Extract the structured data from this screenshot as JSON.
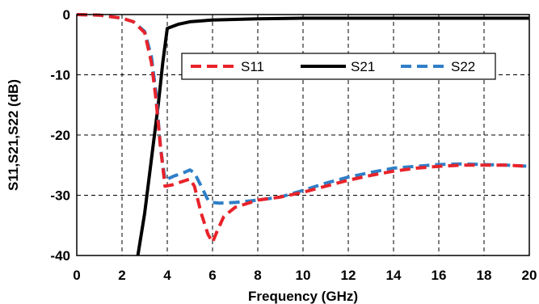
{
  "chart_data": {
    "type": "line",
    "xlabel": "Frequency (GHz)",
    "ylabel": "S11,S21,S22 (dB)",
    "xlim": [
      0,
      20
    ],
    "ylim": [
      -40,
      0
    ],
    "x_ticks": [
      0,
      2,
      4,
      6,
      8,
      10,
      12,
      14,
      16,
      18,
      20
    ],
    "y_ticks": [
      0,
      -10,
      -20,
      -30,
      -40
    ],
    "grid": true,
    "legend_placement": "top-right",
    "series": [
      {
        "name": "S11",
        "color": "#e8232a",
        "style": "dashed",
        "points": [
          [
            0,
            0
          ],
          [
            1,
            -0.1
          ],
          [
            2,
            -0.6
          ],
          [
            2.5,
            -1.2
          ],
          [
            3,
            -3
          ],
          [
            3.3,
            -8
          ],
          [
            3.5,
            -14
          ],
          [
            3.7,
            -22
          ],
          [
            3.9,
            -28.5
          ],
          [
            4.2,
            -28.3
          ],
          [
            4.6,
            -27.8
          ],
          [
            5,
            -27.3
          ],
          [
            5.2,
            -28.5
          ],
          [
            5.5,
            -33
          ],
          [
            5.8,
            -36.5
          ],
          [
            6,
            -37.8
          ],
          [
            6.2,
            -36
          ],
          [
            6.5,
            -33.5
          ],
          [
            7,
            -32
          ],
          [
            8,
            -30.8
          ],
          [
            9,
            -30.3
          ],
          [
            10,
            -29.5
          ],
          [
            11,
            -28.5
          ],
          [
            12,
            -27.5
          ],
          [
            13,
            -26.7
          ],
          [
            14,
            -26
          ],
          [
            15,
            -25.5
          ],
          [
            16,
            -25.2
          ],
          [
            17,
            -25
          ],
          [
            18,
            -25
          ],
          [
            19,
            -25
          ],
          [
            20,
            -25.2
          ]
        ]
      },
      {
        "name": "S21",
        "color": "#000000",
        "style": "solid",
        "points": [
          [
            2.7,
            -40
          ],
          [
            3,
            -33
          ],
          [
            3.3,
            -24
          ],
          [
            3.6,
            -15
          ],
          [
            3.8,
            -8
          ],
          [
            4,
            -2.3
          ],
          [
            4.5,
            -1.6
          ],
          [
            5,
            -1.2
          ],
          [
            6,
            -0.9
          ],
          [
            8,
            -0.7
          ],
          [
            10,
            -0.6
          ],
          [
            14,
            -0.6
          ],
          [
            20,
            -0.6
          ]
        ]
      },
      {
        "name": "S22",
        "color": "#2f7fc8",
        "style": "dashed",
        "points": [
          [
            0,
            0
          ],
          [
            1,
            -0.1
          ],
          [
            2,
            -0.6
          ],
          [
            2.5,
            -1.2
          ],
          [
            3,
            -2.8
          ],
          [
            3.3,
            -7
          ],
          [
            3.5,
            -13
          ],
          [
            3.7,
            -22
          ],
          [
            3.9,
            -27.5
          ],
          [
            4.3,
            -26.8
          ],
          [
            4.7,
            -26.3
          ],
          [
            5,
            -25.8
          ],
          [
            5.2,
            -26.3
          ],
          [
            5.5,
            -28.5
          ],
          [
            5.8,
            -30.8
          ],
          [
            6,
            -31.2
          ],
          [
            6.3,
            -31.3
          ],
          [
            7,
            -31.2
          ],
          [
            8,
            -30.8
          ],
          [
            9,
            -30.3
          ],
          [
            10,
            -29.2
          ],
          [
            11,
            -28
          ],
          [
            12,
            -27
          ],
          [
            13,
            -26.2
          ],
          [
            14,
            -25.5
          ],
          [
            15,
            -25.2
          ],
          [
            16,
            -24.9
          ],
          [
            17,
            -24.8
          ],
          [
            18,
            -24.9
          ],
          [
            19,
            -25
          ],
          [
            20,
            -25.2
          ]
        ]
      }
    ]
  }
}
